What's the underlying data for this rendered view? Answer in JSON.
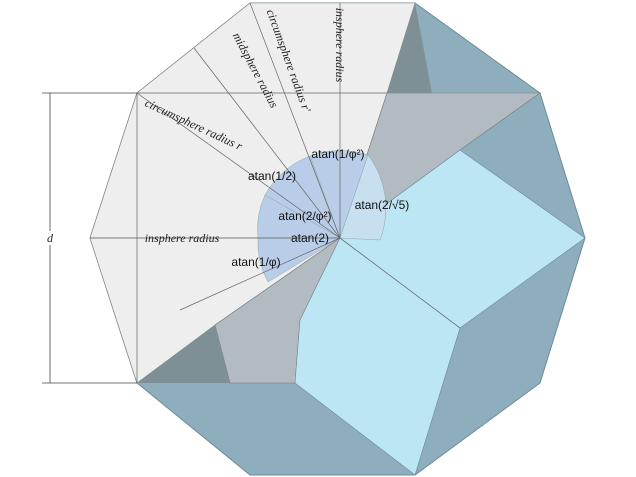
{
  "dimension": "d",
  "radii": {
    "insphere_horizontal": "insphere radius",
    "circumsphere": "circumsphere radius r",
    "midsphere": "midsphere radius",
    "circumsphere_prime": "circumsphere radius r'",
    "insphere_vertical": "insphere radius"
  },
  "angles": [
    "atan(1/φ²)",
    "atan(1/2)",
    "atan(2/φ²)",
    "atan(2/√5)",
    "atan(2)",
    "atan(1/φ)"
  ]
}
